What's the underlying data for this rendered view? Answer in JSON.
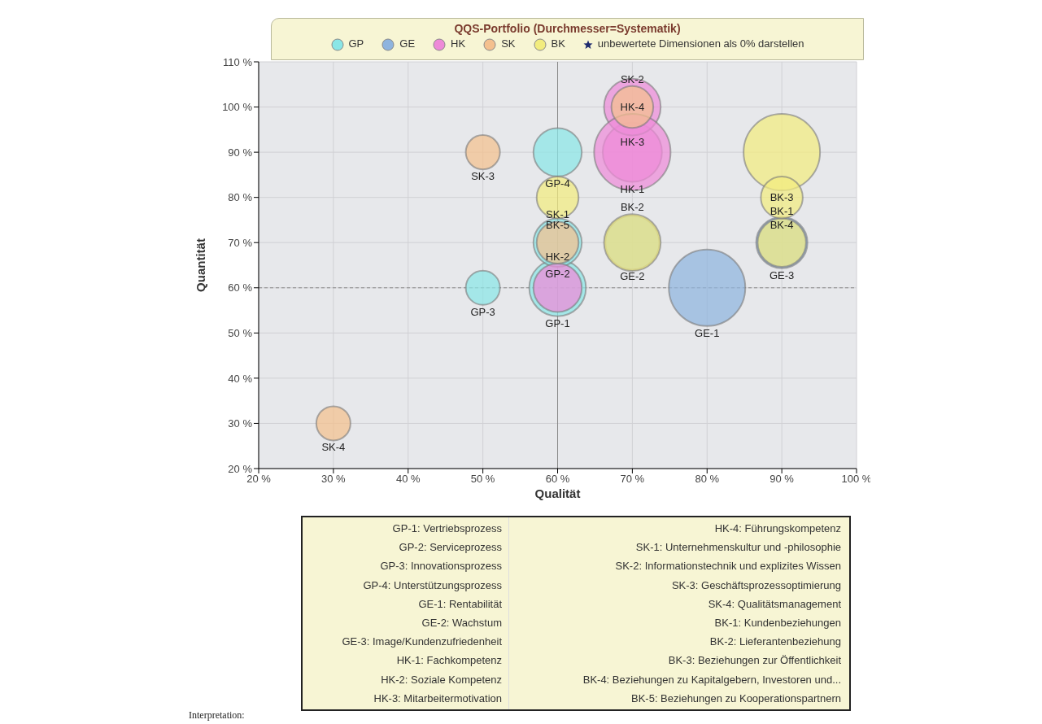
{
  "chart_data": {
    "type": "bubble",
    "title": "QQS-Portfolio (Durchmesser=Systematik)",
    "xlabel": "Qualität",
    "ylabel": "Quantität",
    "xlim": [
      20,
      100
    ],
    "ylim": [
      20,
      110
    ],
    "xticks": [
      {
        "value": 20,
        "label": "20 %"
      },
      {
        "value": 30,
        "label": "30 %"
      },
      {
        "value": 40,
        "label": "40 %"
      },
      {
        "value": 50,
        "label": "50 %"
      },
      {
        "value": 60,
        "label": "60 %"
      },
      {
        "value": 70,
        "label": "70 %"
      },
      {
        "value": 80,
        "label": "80 %"
      },
      {
        "value": 90,
        "label": "90 %"
      },
      {
        "value": 100,
        "label": "100 %"
      }
    ],
    "yticks": [
      {
        "value": 20,
        "label": "20 %"
      },
      {
        "value": 30,
        "label": "30 %"
      },
      {
        "value": 40,
        "label": "40 %"
      },
      {
        "value": 50,
        "label": "50 %"
      },
      {
        "value": 60,
        "label": "60 %"
      },
      {
        "value": 70,
        "label": "70 %"
      },
      {
        "value": 80,
        "label": "80 %"
      },
      {
        "value": 90,
        "label": "90 %"
      },
      {
        "value": 100,
        "label": "100 %"
      },
      {
        "value": 110,
        "label": "110 %"
      }
    ],
    "grid": true,
    "legend": "top",
    "marker": "circle",
    "series": [
      {
        "name": "GP",
        "color": "#8ae6e6",
        "x": [
          60,
          60,
          50,
          60
        ],
        "values": [
          60,
          70,
          60,
          90
        ],
        "sizes": [
          0.55,
          0.4,
          0.2,
          0.4
        ],
        "value_labels": [
          "GP-1",
          "GP-2",
          "GP-3",
          "GP-4"
        ]
      },
      {
        "name": "GE",
        "color": "#8fb4de",
        "x": [
          80,
          70,
          90
        ],
        "values": [
          60,
          70,
          70
        ],
        "sizes": [
          1,
          0.5,
          0.45
        ],
        "value_labels": [
          "GE-1",
          "GE-2",
          "GE-3"
        ]
      },
      {
        "name": "HK",
        "color": "#ee8ad8",
        "x": [
          70,
          60,
          70,
          70
        ],
        "values": [
          90,
          60,
          100,
          90
        ],
        "sizes": [
          0.6,
          0.4,
          0.55,
          1
        ],
        "value_labels": [
          "HK-1",
          "HK-2",
          "HK-3",
          "HK-4"
        ]
      },
      {
        "name": "SK",
        "color": "#f4c08e",
        "x": [
          60,
          70,
          50,
          30
        ],
        "values": [
          70,
          100,
          90,
          30
        ],
        "sizes": [
          0.3,
          0.3,
          0.2,
          0.2
        ],
        "value_labels": [
          "SK-1",
          "SK-2",
          "SK-3",
          "SK-4"
        ]
      },
      {
        "name": "BK",
        "color": "#f2ec7e",
        "x": [
          90,
          70,
          90,
          90,
          60
        ],
        "values": [
          70,
          70,
          90,
          80,
          80
        ],
        "sizes": [
          0.4,
          0.55,
          1,
          0.3,
          0.3
        ],
        "value_labels": [
          "BK-1",
          "BK-2",
          "BK-3",
          "BK-4",
          "BK-5"
        ]
      }
    ],
    "ref_lines": [
      {
        "axis": "x",
        "value": 60,
        "color": "#8a8a8a",
        "line_style": "solid"
      },
      {
        "axis": "y",
        "value": 60,
        "color": "#8a8a8a",
        "line_style": "dashed"
      }
    ],
    "annotations": [
      "unbewertete Dimensionen als 0% darstellen",
      "GP-1: Vertriebsprozess",
      "GP-2: Serviceprozess",
      "GP-3: Innovationsprozess",
      "GP-4: Unterstützungsprozess",
      "GE-1: Rentabilität",
      "GE-2: Wachstum",
      "GE-3: Image/Kundenzufriedenheit",
      "HK-1: Fachkompetenz",
      "HK-2: Soziale Kompetenz",
      "HK-3: Mitarbeitermotivation",
      "HK-4: Führungskompetenz",
      "SK-1: Unternehmenskultur und -philosophie",
      "SK-2: Informationstechnik und explizites Wissen",
      "SK-3: Geschäftsprozessoptimierung",
      "SK-4: Qualitätsmanagement",
      "BK-1: Kundenbeziehungen",
      "BK-2: Lieferantenbeziehung",
      "BK-3: Beziehungen zur Öffentlichkeit",
      "BK-4: Beziehungen zu Kapitalgebern, Investoren und...",
      "BK-5: Beziehungen zu Kooperationspartnern",
      "Interpretation:"
    ]
  }
}
